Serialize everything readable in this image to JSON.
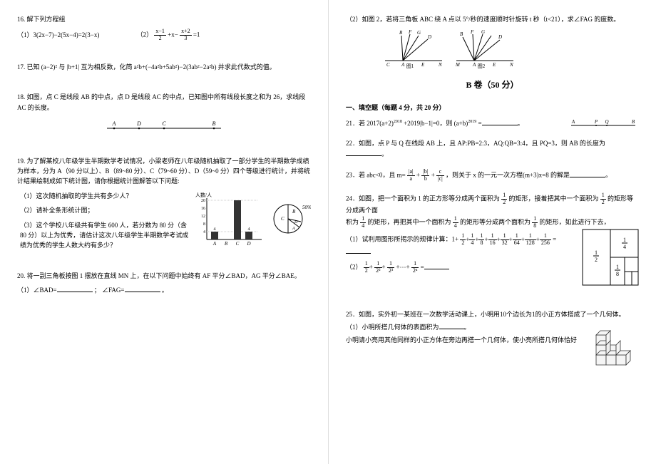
{
  "left": {
    "q16": {
      "title": "16. 解下列方程组",
      "p1_label": "（1）",
      "p1_eq": "3(2x−7)−2(5x−4)=2(3−x)",
      "p2_label": "（2）",
      "p2_lhs_num1": "x−1",
      "p2_lhs_den1": "2",
      "p2_mid": "+x−",
      "p2_lhs_num2": "x+2",
      "p2_lhs_den2": "3",
      "p2_rhs": "=1"
    },
    "q17": {
      "text": "17. 已知 (a−2)² 与 |b+1| 互为相反数，化简 a²b+(−4a²b+5ab²)−2(3ab²−2a²b) 并求此代数式的值。"
    },
    "q18": {
      "text": "18. 如图，点 C 是线段 AB 的中点，点 D 是线段 AC 的中点，已知图中所有线段长度之和为 26，求线段 AC 的长度。",
      "pts": [
        "A",
        "D",
        "C",
        "B"
      ]
    },
    "q19": {
      "intro": "19. 为了解某校八年级学生半期数学考试情况，小梁老师在八年级随机抽取了一部分学生的半期数学成绩为样本，分为 A（90 分以上）、B（89~80 分）、C（79~60 分）、D（59~0 分）四个等级进行统计，并将统计结果绘制成如下统计图，请你根据统计图解答以下问题:",
      "sub1": "（1）这次随机抽取的学生共有多少人？",
      "sub2": "（2）请补全条形统计图；",
      "sub3": "（3）这个学校八年级共有学生 600 人，若分数为 80 分（含 80 分）以上为优秀，请估计这次八年级学生半期数学考试成绩为优秀的学生人数大约有多少？",
      "chart": {
        "ylabel": "人数/人",
        "ymax": 20,
        "yticks": [
          4,
          8,
          12,
          16,
          20
        ],
        "bars": [
          {
            "label": "A",
            "value": 4,
            "color": "#333"
          },
          {
            "label": "B",
            "value": 0,
            "color": "#333"
          },
          {
            "label": "C",
            "value": 20,
            "color": "#333"
          },
          {
            "label": "D",
            "value": 4,
            "color": "#333"
          }
        ],
        "pie": {
          "c_pct": "50%",
          "slices": [
            {
              "label": "C",
              "angle": 180,
              "color": "#fff"
            },
            {
              "label": "B",
              "angle": 108,
              "color": "#fff"
            },
            {
              "label": "D",
              "angle": 36,
              "color": "#fff"
            },
            {
              "label": "A",
              "angle": 36,
              "color": "#fff"
            }
          ]
        }
      }
    },
    "q20": {
      "text": "20. 将一副三角板按图 1 摆放在直线 MN 上，在以下问题中始终有 AF 平分∠BAD，AG 平分∠BAE。",
      "sub1_a": "（1）∠BAD=",
      "sub1_b": "；  ∠FAG=",
      "sub1_c": "。"
    }
  },
  "right": {
    "q20_2": {
      "text": "（2）如图 2，若将三角板 ABC 绕 A 点以 5°/秒的速度顺时针旋转 t 秒（t<21），求∠FAG 的度数。",
      "fig1_label": "图1",
      "fig2_label": "图2",
      "pts": [
        "B",
        "F",
        "G",
        "D",
        "C",
        "A",
        "E",
        "N",
        "M"
      ]
    },
    "sectionB": "B 卷（50 分）",
    "fill_title": "一、填空题（每题 4 分，共 20 分）",
    "q21": {
      "text_a": "21．若 2017(a+2)",
      "sup1": "2018",
      "text_b": "+2019|b−1|=0，则 (a+b)",
      "sup2": "2019",
      "text_c": "=",
      "end": "。",
      "fig_pts": [
        "A",
        "P",
        "Q",
        "B"
      ]
    },
    "q22": {
      "text": "22．如图，点 P 与 Q 在线段 AB 上，且 AP:PB=2:3，AQ:QB=3:4，且 PQ=3，则 AB 的长度为",
      "end": "。"
    },
    "q23": {
      "text_a": "23．若 abc<0，且 m=",
      "f1n": "|a|",
      "f1d": "a",
      "plus1": "+",
      "f2n": "|b|",
      "f2d": "b",
      "plus2": "+",
      "f3n": "c",
      "f3d": "|c|",
      "text_b": "，则关于 x 的一元一次方程(m+3)x=8 的解是",
      "end": "。"
    },
    "q24": {
      "intro_a": "24．如图，把一个面积为 1 的正方形等分成两个面积为",
      "half_n": "1",
      "half_d": "2",
      "intro_b": "的矩形，接着把其中一个面积为",
      "intro_c": "的矩形等分成两个面",
      "line2_a": "积为",
      "q_n": "1",
      "q_d": "4",
      "line2_b": "的矩形，再把其中一个面积为",
      "line2_c": "的矩形等分成两个面积为",
      "e_n": "1",
      "e_d": "8",
      "line2_d": "的矩形，如此进行下去，",
      "sub1_a": "（1）试利用图形所揭示的规律计算：1+",
      "terms": [
        "1/2",
        "1/4",
        "1/8",
        "1/16",
        "1/32",
        "1/64",
        "1/128",
        "1/256"
      ],
      "sub1_end": "=",
      "sub2_a": "（2）",
      "sub2_terms_n": [
        "1",
        "1",
        "1",
        "1"
      ],
      "sub2_terms_d": [
        "2",
        "2²",
        "2³",
        "2ⁿ"
      ],
      "sub2_mid": "+⋯+",
      "sub2_end": "=",
      "fig_labels": [
        "1/4",
        "1/2",
        "1/8"
      ]
    },
    "q25": {
      "text": "25．如图，实外初一某班在一次数学活动课上，小明用10个边长为1的小正方体搭成了一个几何体。",
      "sub1": "（1）小明所搭几何体的表面积为",
      "sub1_end": "。",
      "sub2": "小明请小亮用其他同样的小正方体在旁边再搭一个几何体，使小亮所搭几何体恰好"
    }
  },
  "colors": {
    "text": "#000000",
    "grid": "#333333",
    "bg": "#ffffff"
  }
}
